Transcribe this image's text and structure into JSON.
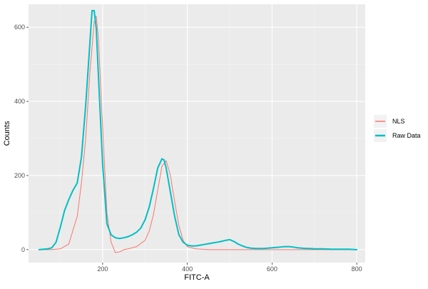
{
  "chart_data": {
    "type": "line",
    "title": "",
    "xlabel": "FITC-A",
    "ylabel": "Counts",
    "xlim": [
      25,
      820
    ],
    "ylim": [
      -35,
      662
    ],
    "x_ticks": [
      200,
      400,
      600,
      800
    ],
    "x_minor_ticks": [
      100,
      300,
      500,
      700
    ],
    "y_ticks": [
      0,
      200,
      400,
      600
    ],
    "y_minor_ticks": [
      100,
      300,
      500
    ],
    "grid": true,
    "legend_position": "right",
    "series": [
      {
        "name": "NLS",
        "color": "#F8766D",
        "line_width": 1,
        "x": [
          50,
          80,
          100,
          120,
          140,
          150,
          160,
          170,
          180,
          185,
          190,
          200,
          210,
          220,
          230,
          240,
          250,
          260,
          280,
          300,
          310,
          320,
          330,
          340,
          350,
          360,
          370,
          380,
          390,
          400,
          420,
          450,
          500,
          600,
          700,
          800
        ],
        "y": [
          0,
          0,
          2,
          15,
          90,
          180,
          300,
          480,
          615,
          630,
          570,
          330,
          100,
          20,
          -8,
          -6,
          0,
          2,
          8,
          25,
          50,
          95,
          160,
          225,
          240,
          200,
          130,
          65,
          25,
          8,
          2,
          0,
          0,
          0,
          0,
          0
        ]
      },
      {
        "name": "Raw Data",
        "color": "#00BFC4",
        "line_width": 2,
        "x": [
          50,
          60,
          70,
          80,
          90,
          100,
          110,
          120,
          130,
          140,
          150,
          160,
          170,
          175,
          180,
          185,
          190,
          200,
          210,
          220,
          230,
          240,
          250,
          260,
          270,
          280,
          290,
          300,
          310,
          320,
          330,
          340,
          345,
          350,
          360,
          370,
          380,
          390,
          400,
          410,
          420,
          430,
          440,
          450,
          460,
          470,
          480,
          490,
          500,
          510,
          520,
          530,
          540,
          550,
          560,
          570,
          580,
          590,
          600,
          610,
          620,
          630,
          640,
          650,
          660,
          670,
          680,
          690,
          700,
          720,
          740,
          760,
          780,
          800
        ],
        "y": [
          0,
          1,
          2,
          5,
          20,
          60,
          105,
          135,
          160,
          180,
          250,
          390,
          560,
          645,
          645,
          595,
          470,
          230,
          70,
          40,
          32,
          30,
          32,
          35,
          40,
          47,
          58,
          80,
          115,
          165,
          220,
          245,
          242,
          220,
          155,
          90,
          40,
          20,
          12,
          10,
          10,
          12,
          14,
          16,
          18,
          20,
          22,
          25,
          27,
          22,
          15,
          10,
          6,
          4,
          3,
          3,
          3,
          4,
          5,
          6,
          7,
          8,
          8,
          7,
          5,
          4,
          3,
          3,
          2,
          2,
          1,
          1,
          1,
          0
        ]
      }
    ]
  }
}
